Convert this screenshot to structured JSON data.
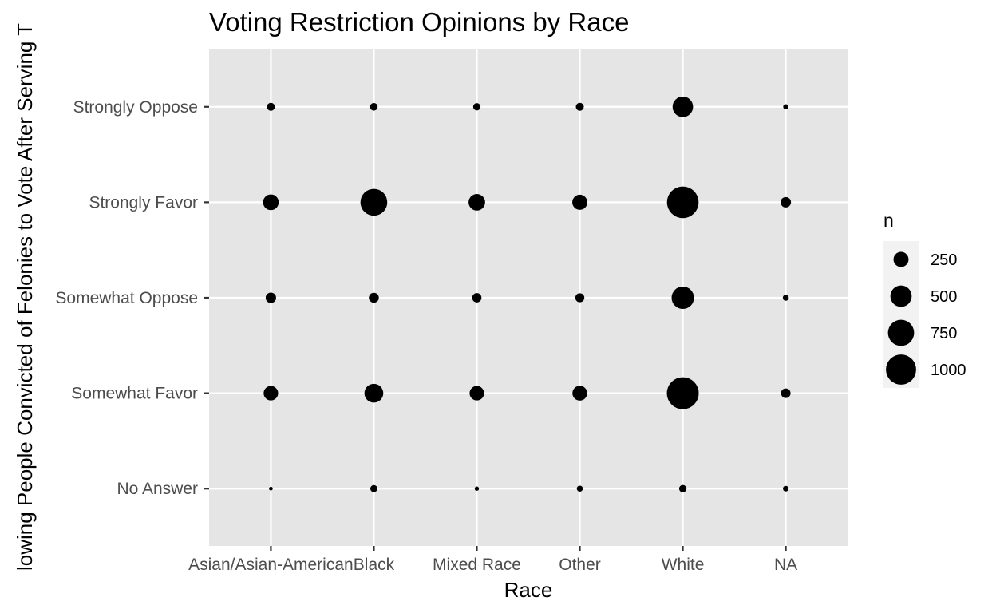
{
  "chart_data": {
    "type": "scatter",
    "title": "Voting Restriction Opinions by Race",
    "xlabel": "Race",
    "ylabel": "lowing People Convicted of Felonies to Vote After Serving T",
    "x_categories": [
      "Asian/Asian-American",
      "Black",
      "Mixed Race",
      "Other",
      "White",
      "NA"
    ],
    "y_categories": [
      "No Answer",
      "Somewhat Favor",
      "Somewhat Oppose",
      "Strongly Favor",
      "Strongly Oppose"
    ],
    "size_variable": "n",
    "points": [
      {
        "x": "Asian/Asian-American",
        "y": "Strongly Oppose",
        "n": 70
      },
      {
        "x": "Black",
        "y": "Strongly Oppose",
        "n": 65
      },
      {
        "x": "Mixed Race",
        "y": "Strongly Oppose",
        "n": 60
      },
      {
        "x": "Other",
        "y": "Strongly Oppose",
        "n": 70
      },
      {
        "x": "White",
        "y": "Strongly Oppose",
        "n": 460
      },
      {
        "x": "NA",
        "y": "Strongly Oppose",
        "n": 30
      },
      {
        "x": "Asian/Asian-American",
        "y": "Strongly Favor",
        "n": 270
      },
      {
        "x": "Black",
        "y": "Strongly Favor",
        "n": 790
      },
      {
        "x": "Mixed Race",
        "y": "Strongly Favor",
        "n": 300
      },
      {
        "x": "Other",
        "y": "Strongly Favor",
        "n": 250
      },
      {
        "x": "White",
        "y": "Strongly Favor",
        "n": 1100
      },
      {
        "x": "NA",
        "y": "Strongly Favor",
        "n": 120
      },
      {
        "x": "Asian/Asian-American",
        "y": "Somewhat Oppose",
        "n": 120
      },
      {
        "x": "Black",
        "y": "Somewhat Oppose",
        "n": 110
      },
      {
        "x": "Mixed Race",
        "y": "Somewhat Oppose",
        "n": 95
      },
      {
        "x": "Other",
        "y": "Somewhat Oppose",
        "n": 90
      },
      {
        "x": "White",
        "y": "Somewhat Oppose",
        "n": 550
      },
      {
        "x": "NA",
        "y": "Somewhat Oppose",
        "n": 40
      },
      {
        "x": "Asian/Asian-American",
        "y": "Somewhat Favor",
        "n": 230
      },
      {
        "x": "Black",
        "y": "Somewhat Favor",
        "n": 390
      },
      {
        "x": "Mixed Race",
        "y": "Somewhat Favor",
        "n": 230
      },
      {
        "x": "Other",
        "y": "Somewhat Favor",
        "n": 240
      },
      {
        "x": "White",
        "y": "Somewhat Favor",
        "n": 1120
      },
      {
        "x": "NA",
        "y": "Somewhat Favor",
        "n": 100
      },
      {
        "x": "Asian/Asian-American",
        "y": "No Answer",
        "n": 15
      },
      {
        "x": "Black",
        "y": "No Answer",
        "n": 55
      },
      {
        "x": "Mixed Race",
        "y": "No Answer",
        "n": 20
      },
      {
        "x": "Other",
        "y": "No Answer",
        "n": 40
      },
      {
        "x": "White",
        "y": "No Answer",
        "n": 60
      },
      {
        "x": "NA",
        "y": "No Answer",
        "n": 35
      }
    ],
    "legend": {
      "title": "n",
      "placement": "right",
      "breaks": [
        250,
        500,
        750,
        1000
      ]
    },
    "grid": true,
    "colors": {
      "panel_background": "#e5e5e5",
      "grid_line": "#ffffff",
      "point": "#000000",
      "tick_label": "#4d4d4d"
    }
  }
}
